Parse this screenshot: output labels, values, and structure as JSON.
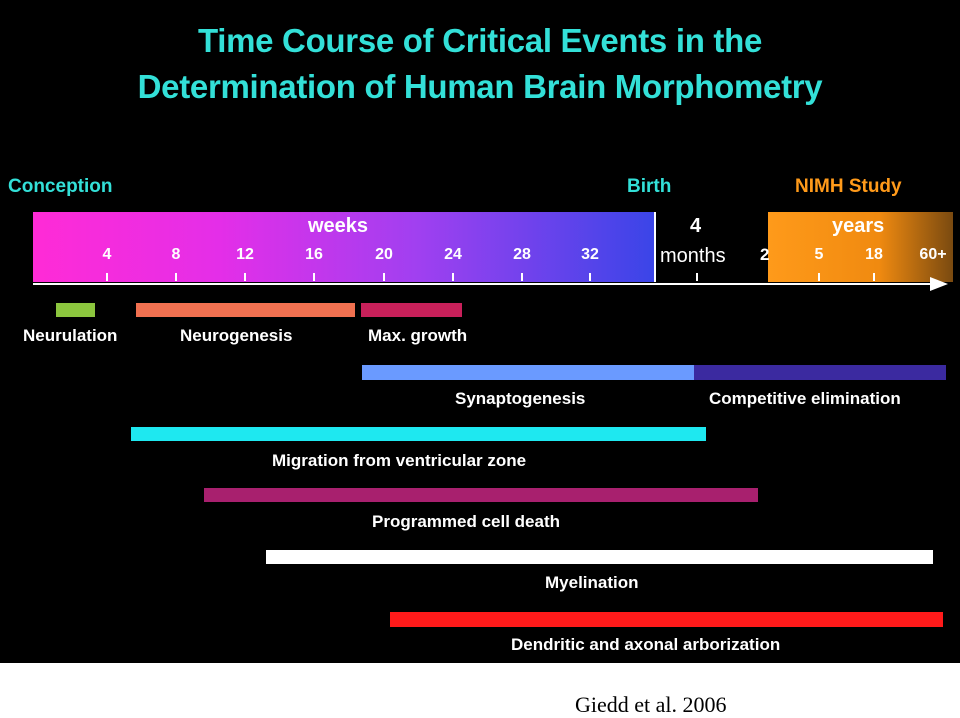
{
  "title_line1": "Time Course of Critical Events in the",
  "title_line2": "Determination of Human Brain Morphometry",
  "milestones": {
    "conception": "Conception",
    "birth": "Birth",
    "nimh": "NIMH Study"
  },
  "timeline": {
    "weeks_label": "weeks",
    "week_ticks": [
      "4",
      "8",
      "12",
      "16",
      "20",
      "24",
      "28",
      "32"
    ],
    "four_label": "4",
    "months_label": "months",
    "two_label": "2",
    "years_label": "years",
    "year_ticks": [
      "5",
      "18",
      "60+"
    ]
  },
  "events": {
    "neurulation": "Neurulation",
    "neurogenesis": "Neurogenesis",
    "max_growth": "Max. growth",
    "synaptogenesis": "Synaptogenesis",
    "competitive_elimination": "Competitive elimination",
    "migration": "Migration from ventricular zone",
    "cell_death": "Programmed cell death",
    "myelination": "Myelination",
    "arborization": "Dendritic and axonal arborization"
  },
  "colors": {
    "title": "#33e0d8",
    "milestone": "#33e0d8",
    "nimh": "#ff9a1a",
    "neurulation": "#8cc63e",
    "neurogenesis": "#f07050",
    "max_growth": "#c8205a",
    "synaptogenesis": "#6a9aff",
    "competitive_elimination": "#3b2aa0",
    "migration": "#1ee8f0",
    "cell_death": "#a8206e",
    "myelination": "#ffffff",
    "arborization": "#ff1a1a"
  },
  "citation": "Giedd et al. 2006"
}
